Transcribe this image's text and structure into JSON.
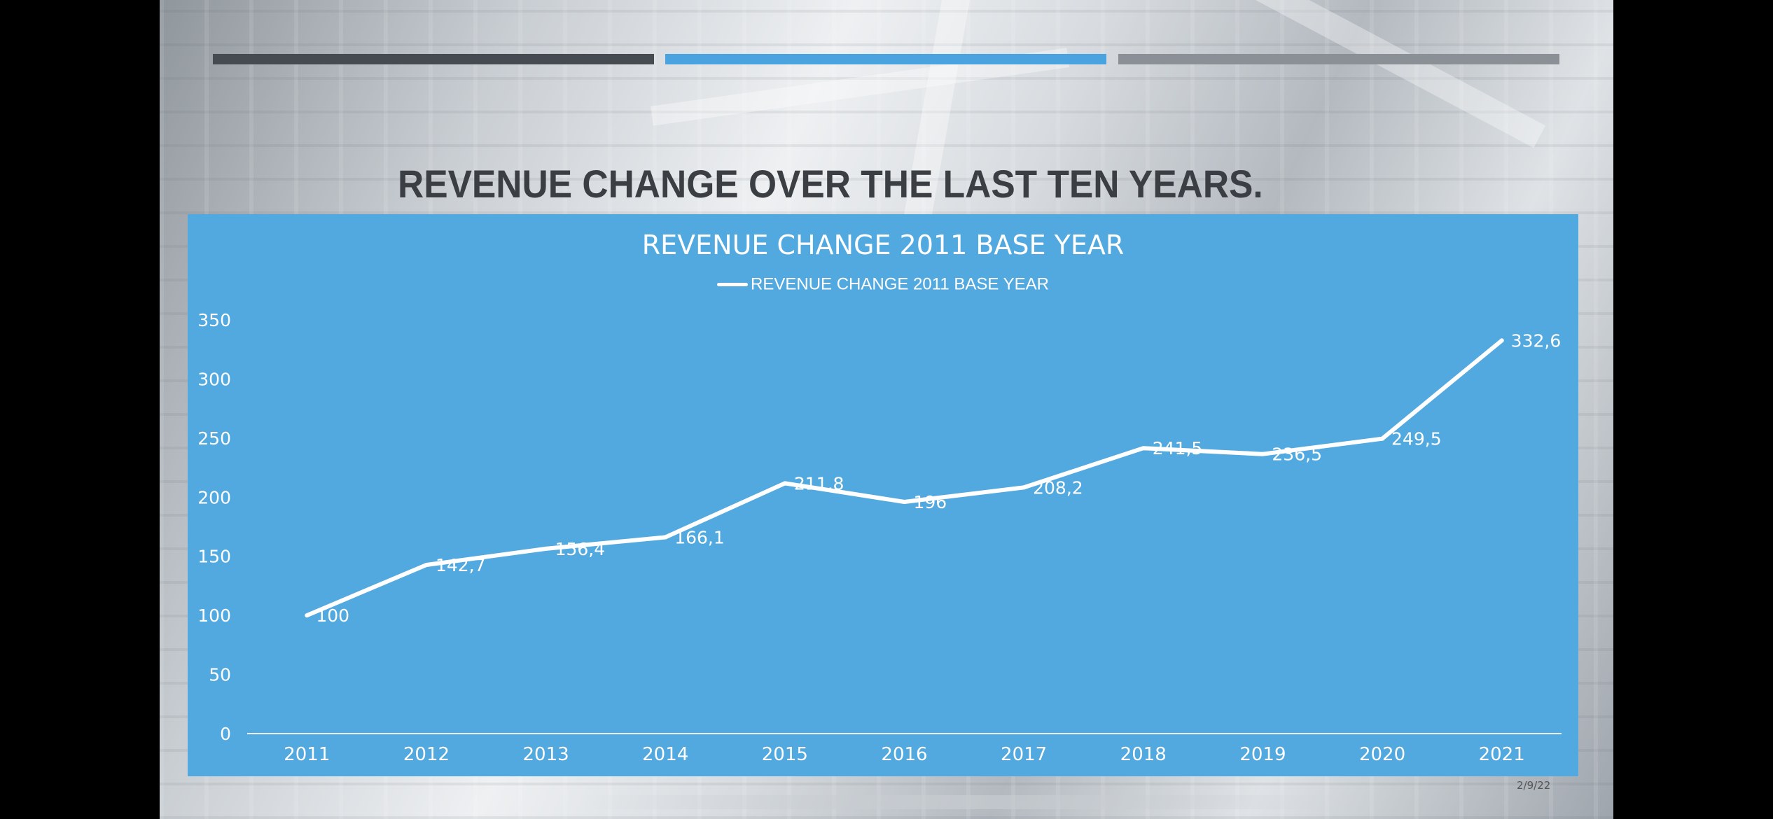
{
  "slide": {
    "title": "REVENUE CHANGE OVER THE LAST TEN YEARS.",
    "date": "2/9/22"
  },
  "colors": {
    "panel": "#52a9df",
    "bar_dark": "#454b50",
    "bar_blue": "#4aa3de",
    "bar_gray": "#8a9096",
    "line": "#ffffff"
  },
  "chart_data": {
    "type": "line",
    "title": "REVENUE CHANGE 2011 BASE YEAR",
    "categories": [
      "2011",
      "2012",
      "2013",
      "2014",
      "2015",
      "2016",
      "2017",
      "2018",
      "2019",
      "2020",
      "2021"
    ],
    "series": [
      {
        "name": "REVENUE CHANGE 2011 BASE YEAR",
        "values": [
          100,
          142.7,
          156.4,
          166.1,
          211.8,
          196,
          208.2,
          241.5,
          236.5,
          249.5,
          332.6
        ],
        "labels": [
          "100",
          "142,7",
          "156,4",
          "166,1",
          "211,8",
          "196",
          "208,2",
          "241,5",
          "236,5",
          "249,5",
          "332,6"
        ]
      }
    ],
    "ylim": [
      0,
      350
    ],
    "yticks": [
      "0",
      "50",
      "100",
      "150",
      "200",
      "250",
      "300",
      "350"
    ],
    "grid": false,
    "legend": "top-center",
    "xlabel": "",
    "ylabel": ""
  }
}
